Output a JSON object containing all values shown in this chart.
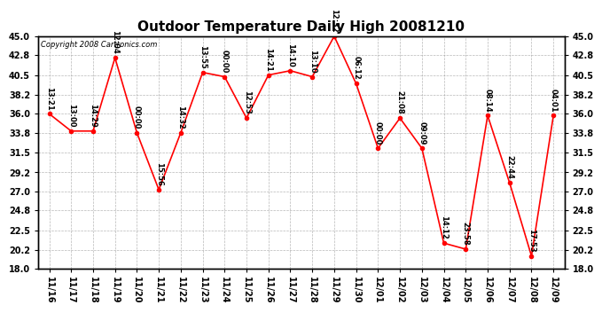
{
  "title": "Outdoor Temperature Daily High 20081210",
  "copyright": "Copyright 2008 Cartronics.com",
  "x_labels": [
    "11/16",
    "11/17",
    "11/18",
    "11/19",
    "11/20",
    "11/21",
    "11/22",
    "11/23",
    "11/24",
    "11/25",
    "11/26",
    "11/27",
    "11/28",
    "11/29",
    "11/30",
    "12/01",
    "12/02",
    "12/03",
    "12/04",
    "12/05",
    "12/06",
    "12/07",
    "12/08",
    "12/09"
  ],
  "y_values": [
    36.0,
    34.0,
    34.0,
    42.5,
    33.8,
    27.2,
    33.8,
    40.8,
    40.3,
    35.5,
    40.5,
    41.0,
    40.3,
    45.0,
    39.5,
    32.0,
    35.5,
    32.0,
    21.0,
    20.3,
    35.8,
    28.0,
    19.5,
    35.8
  ],
  "time_labels": [
    "13:21",
    "13:00",
    "14:29",
    "12:04",
    "00:00",
    "15:56",
    "14:32",
    "13:55",
    "00:00",
    "12:53",
    "14:21",
    "14:10",
    "13:10",
    "12:32",
    "06:12",
    "00:00",
    "21:08",
    "09:09",
    "14:12",
    "23:58",
    "08:14",
    "22:44",
    "17:53",
    "04:01"
  ],
  "ylim_min": 18.0,
  "ylim_max": 45.0,
  "yticks": [
    18.0,
    20.2,
    22.5,
    24.8,
    27.0,
    29.2,
    31.5,
    33.8,
    36.0,
    38.2,
    40.5,
    42.8,
    45.0
  ],
  "line_color": "#ff0000",
  "marker_color": "#ff0000",
  "bg_color": "#ffffff",
  "grid_color": "#999999",
  "title_fontsize": 11,
  "label_fontsize": 6.0,
  "tick_fontsize": 7,
  "copyright_fontsize": 6
}
